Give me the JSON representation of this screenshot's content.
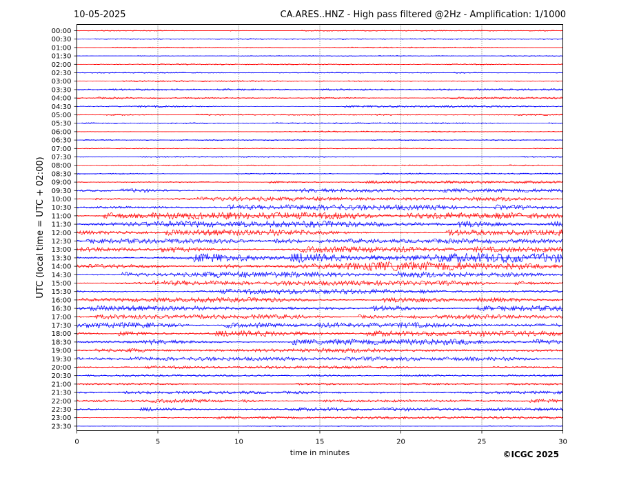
{
  "header": {
    "date": "10-05-2025",
    "title": "CA.ARES..HNZ - High pass filtered @2Hz - Amplification: 1/1000"
  },
  "footer": {
    "copyright": "©ICGC 2025"
  },
  "chart_data": {
    "type": "line",
    "title": "CA.ARES..HNZ - High pass filtered @2Hz - Amplification: 1/1000",
    "subtitle": "10-05-2025",
    "xlabel": "time in minutes",
    "ylabel": "UTC (local time = UTC + 02:00)",
    "xlim": [
      0,
      30
    ],
    "x_ticks": [
      0,
      5,
      10,
      15,
      20,
      25,
      30
    ],
    "vertical_grid": "dotted at 5, 10, 15, 20, 25",
    "trace_colors": [
      "#ff0000",
      "#0000ff"
    ],
    "rows": [
      "00:00",
      "00:30",
      "01:00",
      "01:30",
      "02:00",
      "02:30",
      "03:00",
      "03:30",
      "04:00",
      "04:30",
      "05:00",
      "05:30",
      "06:00",
      "06:30",
      "07:00",
      "07:30",
      "08:00",
      "08:30",
      "09:00",
      "09:30",
      "10:00",
      "10:30",
      "11:00",
      "11:30",
      "12:00",
      "12:30",
      "13:00",
      "13:30",
      "14:00",
      "14:30",
      "15:00",
      "15:30",
      "16:00",
      "16:30",
      "17:00",
      "17:30",
      "18:00",
      "18:30",
      "19:00",
      "19:30",
      "20:00",
      "20:30",
      "21:00",
      "21:30",
      "22:00",
      "22:30",
      "23:00",
      "23:30"
    ],
    "activity_level": [
      0.05,
      0.04,
      0.05,
      0.03,
      0.05,
      0.06,
      0.07,
      0.12,
      0.12,
      0.15,
      0.1,
      0.08,
      0.08,
      0.05,
      0.03,
      0.06,
      0.04,
      0.08,
      0.22,
      0.32,
      0.35,
      0.48,
      0.62,
      0.55,
      0.55,
      0.4,
      0.52,
      0.85,
      0.82,
      0.55,
      0.4,
      0.42,
      0.4,
      0.45,
      0.38,
      0.48,
      0.5,
      0.52,
      0.38,
      0.32,
      0.22,
      0.15,
      0.12,
      0.22,
      0.28,
      0.3,
      0.22,
      0.02
    ]
  }
}
